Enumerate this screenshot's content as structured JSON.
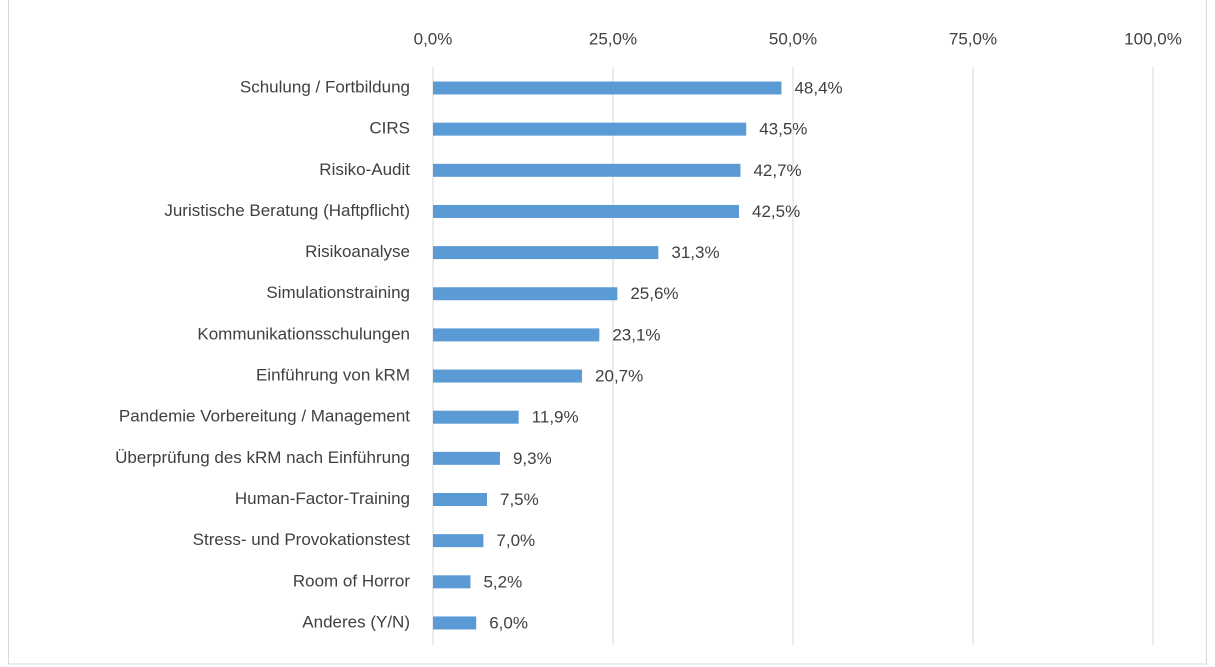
{
  "chart_data": {
    "type": "barh",
    "categories": [
      "Schulung / Fortbildung",
      "CIRS",
      "Risiko-Audit",
      "Juristische Beratung (Haftpflicht)",
      "Risikoanalyse",
      "Simulationstraining",
      "Kommunikationsschulungen",
      "Einführung von kRM",
      "Pandemie Vorbereitung / Management",
      "Überprüfung des kRM nach Einführung",
      "Human-Factor-Training",
      "Stress- und Provokationstest",
      "Room of Horror",
      "Anderes (Y/N)"
    ],
    "values": [
      48.4,
      43.5,
      42.7,
      42.5,
      31.3,
      25.6,
      23.1,
      20.7,
      11.9,
      9.3,
      7.5,
      7.0,
      5.2,
      6.0
    ],
    "value_labels": [
      "48,4%",
      "43,5%",
      "42,7%",
      "42,5%",
      "31,3%",
      "25,6%",
      "23,1%",
      "20,7%",
      "11,9%",
      "9,3%",
      "7,5%",
      "7,0%",
      "5,2%",
      "6,0%"
    ],
    "color": "#5b9bd5",
    "xlim": [
      0,
      100
    ],
    "xticks": [
      {
        "value": 0,
        "label": "0,0%"
      },
      {
        "value": 25,
        "label": "25,0%"
      },
      {
        "value": 50,
        "label": "50,0%"
      },
      {
        "value": 75,
        "label": "75,0%"
      },
      {
        "value": 100,
        "label": "100,0%"
      }
    ],
    "grid": true
  }
}
